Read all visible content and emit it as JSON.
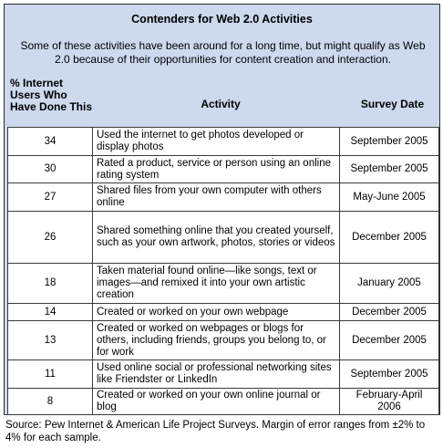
{
  "title": "Contenders for Web 2.0 Activities",
  "subtitle": "Some of these activities have been around for a long time, but might qualify as Web 2.0 because of their opportunities for content creation and interaction.",
  "columns": {
    "pct": "% Internet Users Who Have Done This",
    "activity": "Activity",
    "date": "Survey Date"
  },
  "rows": [
    {
      "pct": "34",
      "activity": "Used the internet to get photos developed or display photos",
      "date": "September 2005"
    },
    {
      "pct": "30",
      "activity": "Rated a product, service or person using an online rating system",
      "date": "September 2005"
    },
    {
      "pct": "27",
      "activity": "Shared files from your own computer with others online",
      "date": "May-June 2005"
    },
    {
      "pct": "26",
      "activity": "Shared something online that you created yourself, such as your own artwork, photos, stories or videos",
      "date": "December 2005"
    },
    {
      "pct": "18",
      "activity": "Taken material found online—like songs, text or images—and remixed it into your own artistic creation",
      "date": "January 2005"
    },
    {
      "pct": "14",
      "activity": "Created or worked on your own webpage",
      "date": "December 2005"
    },
    {
      "pct": "13",
      "activity": "Created or worked on webpages or blogs for others, including friends, groups you belong to, or for work",
      "date": "December 2005"
    },
    {
      "pct": "11",
      "activity": "Used online social or professional networking sites like Friendster or LinkedIn",
      "date": "September 2005"
    },
    {
      "pct": "8",
      "activity": "Created or worked on your own online journal or blog",
      "date": "February-April 2006"
    }
  ],
  "source": "Source: Pew Internet & American Life Project Surveys. Margin of error ranges from ±2% to 4% for each sample."
}
